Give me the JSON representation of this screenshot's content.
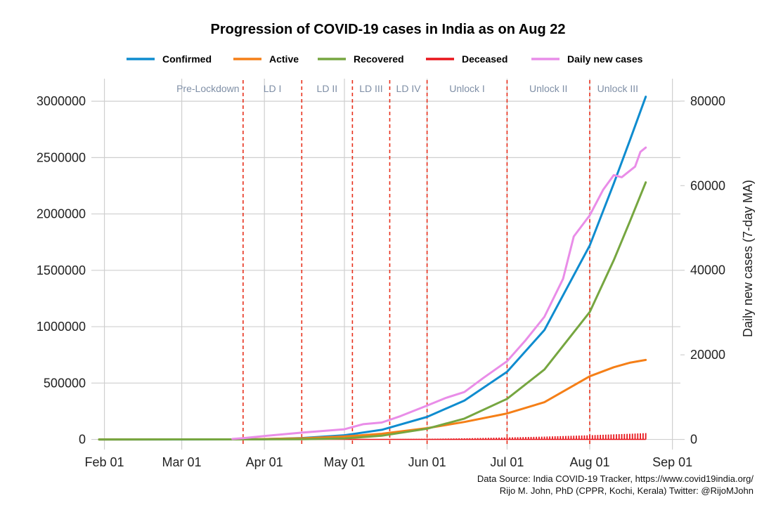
{
  "chart_data": {
    "type": "line",
    "title": "Progression of COVID-19 cases in India as on Aug 22",
    "x_ticks": [
      "Feb 01",
      "Mar 01",
      "Apr 01",
      "May 01",
      "Jun 01",
      "Jul 01",
      "Aug 01",
      "Sep 01"
    ],
    "x_tick_dates": [
      "2020-02-01",
      "2020-03-01",
      "2020-04-01",
      "2020-05-01",
      "2020-06-01",
      "2020-07-01",
      "2020-08-01",
      "2020-09-01"
    ],
    "xlim": [
      "2020-01-25",
      "2020-09-04"
    ],
    "y_left_ticks": [
      "0",
      "500000",
      "1000000",
      "1500000",
      "2000000",
      "2500000",
      "3000000"
    ],
    "y_left_lim": [
      -90000,
      3200000
    ],
    "y_right_ticks": [
      "0",
      "20000",
      "40000",
      "60000",
      "80000"
    ],
    "y_right_lim": [
      -2400,
      85300
    ],
    "y_right_label": "Daily new cases (7-day MA)",
    "legend_position": "top",
    "series": [
      {
        "name": "Confirmed",
        "axis": "left",
        "color": "#0f8ccf",
        "x": [
          "2020-01-30",
          "2020-03-01",
          "2020-03-24",
          "2020-04-01",
          "2020-04-15",
          "2020-05-01",
          "2020-05-15",
          "2020-06-01",
          "2020-06-15",
          "2020-07-01",
          "2020-07-15",
          "2020-08-01",
          "2020-08-10",
          "2020-08-16",
          "2020-08-22"
        ],
        "y": [
          1,
          3,
          570,
          2000,
          12000,
          37000,
          85000,
          200000,
          345000,
          600000,
          970000,
          1720000,
          2270000,
          2650000,
          3040000
        ]
      },
      {
        "name": "Active",
        "axis": "left",
        "color": "#f57f17",
        "x": [
          "2020-01-30",
          "2020-03-24",
          "2020-04-15",
          "2020-05-01",
          "2020-05-15",
          "2020-06-01",
          "2020-06-15",
          "2020-07-01",
          "2020-07-15",
          "2020-08-01",
          "2020-08-10",
          "2020-08-16",
          "2020-08-22"
        ],
        "y": [
          1,
          500,
          10000,
          26000,
          50000,
          100000,
          155000,
          230000,
          330000,
          560000,
          640000,
          680000,
          705000
        ]
      },
      {
        "name": "Recovered",
        "axis": "left",
        "color": "#76a640",
        "x": [
          "2020-01-30",
          "2020-03-24",
          "2020-04-15",
          "2020-05-01",
          "2020-05-15",
          "2020-06-01",
          "2020-06-15",
          "2020-07-01",
          "2020-07-15",
          "2020-08-01",
          "2020-08-10",
          "2020-08-16",
          "2020-08-22"
        ],
        "y": [
          0,
          40,
          1500,
          9000,
          33000,
          95000,
          185000,
          360000,
          620000,
          1130000,
          1590000,
          1930000,
          2280000
        ]
      },
      {
        "name": "Deceased",
        "axis": "left",
        "color": "#e8151b",
        "x": [
          "2020-01-30",
          "2020-03-24",
          "2020-04-15",
          "2020-05-01",
          "2020-05-15",
          "2020-06-01",
          "2020-06-15",
          "2020-07-01",
          "2020-07-15",
          "2020-08-01",
          "2020-08-10",
          "2020-08-16",
          "2020-08-22"
        ],
        "y": [
          0,
          10,
          400,
          1200,
          2700,
          5600,
          10000,
          17800,
          25000,
          37000,
          45000,
          50000,
          56000
        ]
      },
      {
        "name": "Daily new cases",
        "axis": "right",
        "color": "#e98de8",
        "x": [
          "2020-03-20",
          "2020-03-24",
          "2020-04-01",
          "2020-04-15",
          "2020-05-01",
          "2020-05-08",
          "2020-05-15",
          "2020-05-22",
          "2020-06-01",
          "2020-06-08",
          "2020-06-15",
          "2020-06-22",
          "2020-07-01",
          "2020-07-08",
          "2020-07-15",
          "2020-07-22",
          "2020-07-26",
          "2020-08-01",
          "2020-08-06",
          "2020-08-10",
          "2020-08-13",
          "2020-08-18",
          "2020-08-20",
          "2020-08-22"
        ],
        "y": [
          100,
          300,
          800,
          1600,
          2400,
          3600,
          4000,
          5500,
          8000,
          9800,
          11200,
          14500,
          18500,
          23500,
          29000,
          38000,
          48000,
          53000,
          59000,
          62500,
          62000,
          64500,
          68000,
          69000
        ]
      }
    ],
    "phases": [
      {
        "label": "Pre-Lockdown",
        "date": "2020-03-24"
      },
      {
        "label": "LD I",
        "date": "2020-04-15"
      },
      {
        "label": "LD II",
        "date": "2020-05-04"
      },
      {
        "label": "LD III",
        "date": "2020-05-18"
      },
      {
        "label": "LD IV",
        "date": "2020-06-01"
      },
      {
        "label": "Unlock I",
        "date": "2020-07-01"
      },
      {
        "label": "Unlock II",
        "date": "2020-08-01"
      },
      {
        "label": "Unlock III",
        "date": null
      }
    ],
    "phase_line_color": "#e8301c"
  },
  "source_lines": [
    "Data Source: India COVID-19 Tracker, https://www.covid19india.org/",
    "Rijo M. John, PhD (CPPR, Kochi, Kerala) Twitter: @RijoMJohn"
  ]
}
